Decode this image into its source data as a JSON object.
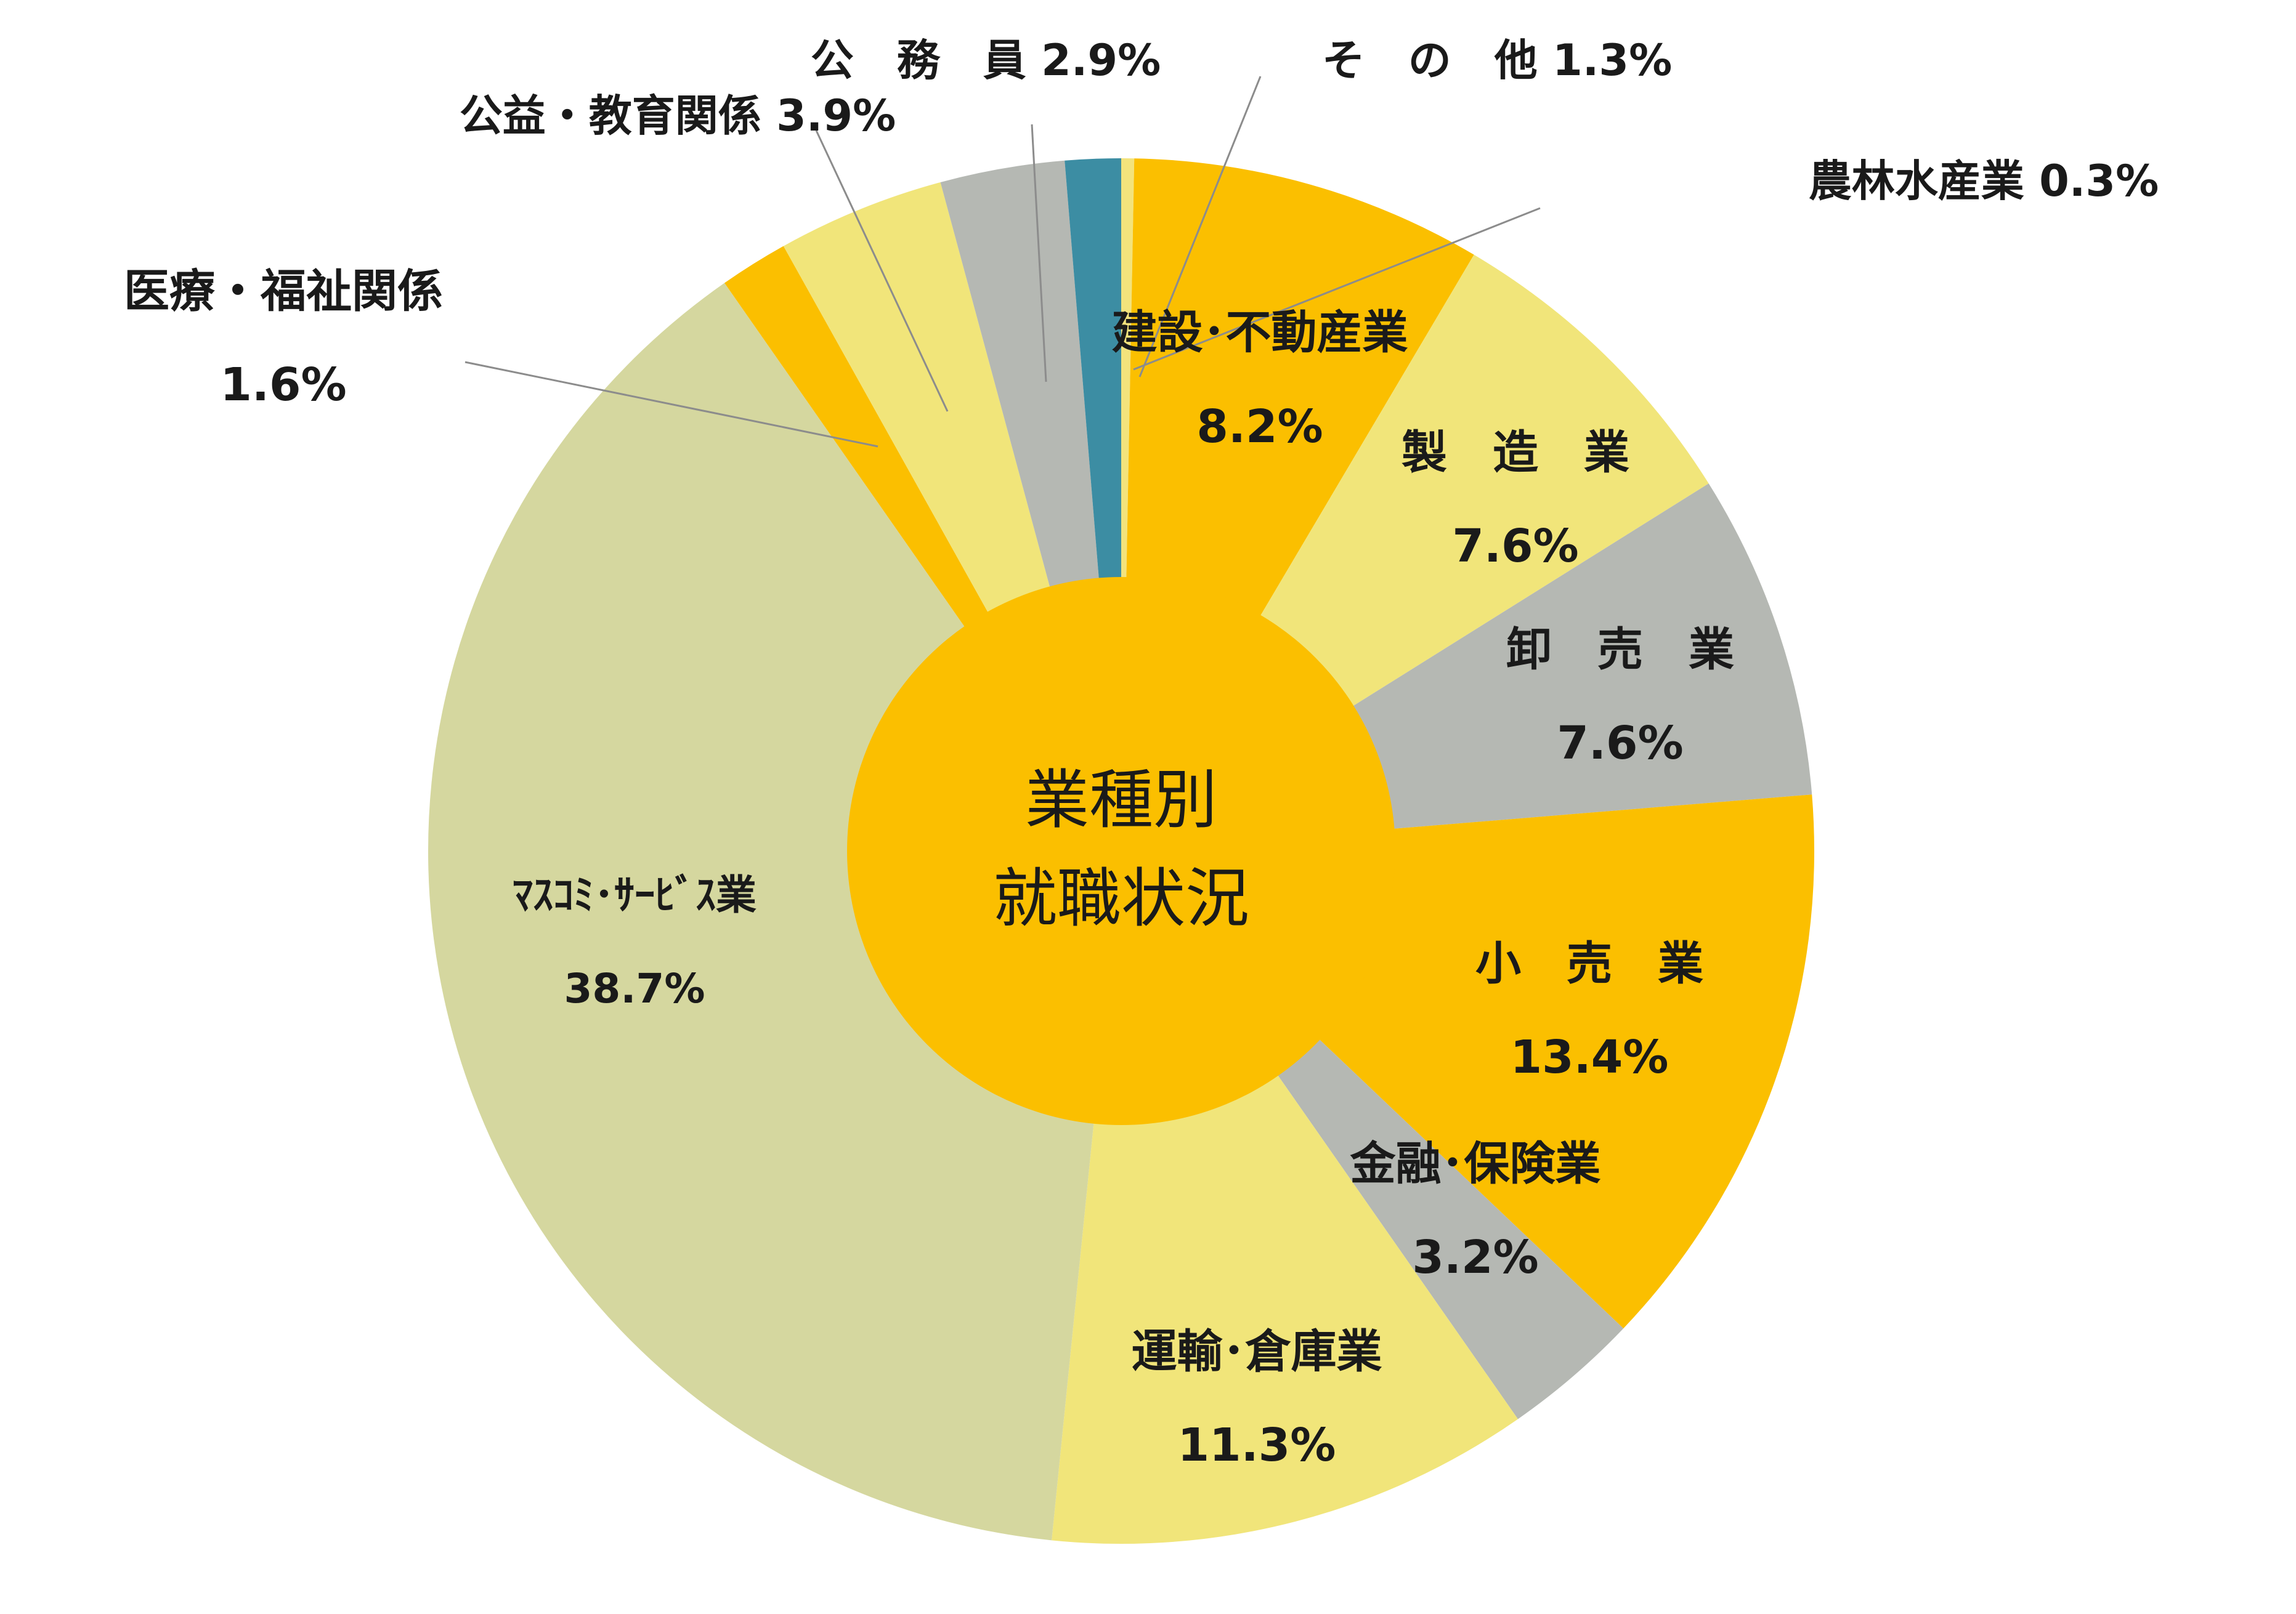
{
  "chart_data": {
    "type": "pie",
    "title_lines": [
      "業種別",
      "就職状況"
    ],
    "unit": "%",
    "slices": [
      {
        "label": "農林水産業",
        "value": 0.3,
        "value_text": "0.3%",
        "color": "#f3e37c"
      },
      {
        "label": "建設･不動産業",
        "value": 8.2,
        "value_text": "8.2%",
        "color": "#fbbf00"
      },
      {
        "label": "製　造　業",
        "value": 7.6,
        "value_text": "7.6%",
        "color": "#f1e57a"
      },
      {
        "label": "卸　売　業",
        "value": 7.6,
        "value_text": "7.6%",
        "color": "#b5b8b3"
      },
      {
        "label": "小　売　業",
        "value": 13.4,
        "value_text": "13.4%",
        "color": "#fbbf00"
      },
      {
        "label": "金融･保険業",
        "value": 3.2,
        "value_text": "3.2%",
        "color": "#b5b8b3"
      },
      {
        "label": "運輸･倉庫業",
        "value": 11.3,
        "value_text": "11.3%",
        "color": "#f1e57a"
      },
      {
        "label": "ﾏｽｺﾐ･ｻｰﾋﾞｽ業",
        "value": 38.7,
        "value_text": "38.7%",
        "color": "#d5d79f"
      },
      {
        "label": "医療・福祉関係",
        "value": 1.6,
        "value_text": "1.6%",
        "color": "#fbbf00"
      },
      {
        "label": "公益・教育関係",
        "value": 3.9,
        "value_text": "3.9%",
        "color": "#f1e57a"
      },
      {
        "label": "公　務　員",
        "value": 2.9,
        "value_text": "2.9%",
        "color": "#b5b8b3"
      },
      {
        "label": "そ　の　他",
        "value": 1.3,
        "value_text": "1.3%",
        "color": "#3c8da3"
      }
    ],
    "center_color": "#fbbf00",
    "leader_line_color": "#8c8c8c"
  }
}
